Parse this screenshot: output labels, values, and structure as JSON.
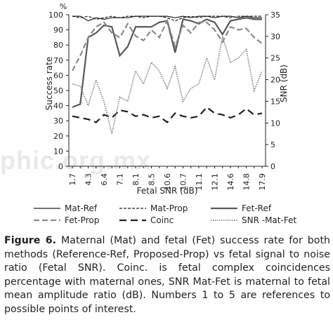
{
  "watermark": "phic.org.mx",
  "chart_data": {
    "type": "line",
    "xlabel": "Fetal SNR (dB)",
    "ylabel_left": "Success rate",
    "ylabel_left_unit": "%",
    "ylabel_right": "SNR (dB)",
    "ylim_left": [
      0,
      100
    ],
    "yticks_left": [
      0,
      10,
      20,
      30,
      40,
      50,
      60,
      70,
      80,
      90,
      100
    ],
    "ylim_right": [
      0,
      35
    ],
    "yticks_right": [
      0,
      5,
      10,
      15,
      20,
      25,
      30,
      35
    ],
    "x_tick_labels": [
      "1.7",
      "4.3",
      "6.4",
      "7.1",
      "8.1",
      "8.5",
      "10.6",
      "10.7",
      "11.1",
      "12.1",
      "14.6",
      "14.8",
      "17.9"
    ],
    "x_tick_positions": [
      0,
      2,
      4,
      6,
      8,
      10,
      12,
      14,
      16,
      18,
      20,
      22,
      24
    ],
    "grid": false,
    "series": [
      {
        "name": "Mat-Ref",
        "axis": "left",
        "style": "solid",
        "width": 1.2,
        "values": [
          99,
          99,
          96,
          98,
          97,
          98,
          98,
          98,
          99,
          99,
          99,
          99,
          99,
          98,
          99,
          98,
          99,
          99,
          98,
          99,
          99,
          98,
          99,
          98,
          98
        ]
      },
      {
        "name": "Mat-Prop",
        "axis": "left",
        "style": "dashed-fine",
        "width": 1.2,
        "values": [
          99,
          98,
          99,
          97,
          98,
          99,
          98,
          99,
          99,
          98,
          99,
          99,
          98,
          96,
          98,
          99,
          98,
          99,
          99,
          99,
          98,
          99,
          99,
          99,
          99
        ]
      },
      {
        "name": "Fet-Ref",
        "axis": "left",
        "style": "solid",
        "width": 2.2,
        "values": [
          39,
          41,
          85,
          88,
          93,
          92,
          73,
          79,
          92,
          92,
          92,
          95,
          96,
          75,
          97,
          96,
          94,
          97,
          95,
          87,
          96,
          97,
          98,
          97,
          97
        ]
      },
      {
        "name": "Fet-Prop",
        "axis": "left",
        "style": "dashed",
        "width": 2.2,
        "values": [
          63,
          73,
          85,
          92,
          95,
          88,
          85,
          94,
          86,
          83,
          90,
          85,
          96,
          79,
          93,
          88,
          95,
          95,
          90,
          82,
          92,
          90,
          91,
          85,
          81
        ]
      },
      {
        "name": "Coinc",
        "axis": "left",
        "style": "longdash",
        "width": 2.2,
        "values": [
          33,
          32,
          31,
          29,
          34,
          32,
          37,
          36,
          33,
          34,
          32,
          33,
          29,
          35,
          33,
          32,
          33,
          39,
          35,
          34,
          32,
          34,
          38,
          34,
          35
        ]
      },
      {
        "name": "SNR -Mat-Fet",
        "axis": "right",
        "style": "dotted",
        "width": 1.8,
        "values": [
          19,
          18.5,
          14,
          20,
          15,
          7.5,
          16,
          15,
          22,
          19,
          24,
          22,
          18,
          23,
          15,
          18,
          19,
          25,
          20,
          30,
          24,
          25,
          27,
          17.5,
          22
        ]
      }
    ]
  },
  "legend": {
    "row1": [
      "Mat-Ref",
      "Mat-Prop",
      "Fet-Ref"
    ],
    "row2": [
      "Fet-Prop",
      "Coinc",
      "SNR -Mat-Fet"
    ]
  },
  "caption": {
    "figure_label": "Figure 6.",
    "text": " Maternal (Mat) and fetal (Fet) success rate for both methods (Reference-Ref, Proposed-Prop) vs fetal signal to noise ratio (Fetal SNR). Coinc. is fetal complex coincidences percentage with maternal ones, SNR Mat-Fet is maternal to fetal mean amplitude ratio (dB). Numbers 1 to 5 are references to possible points of interest."
  }
}
